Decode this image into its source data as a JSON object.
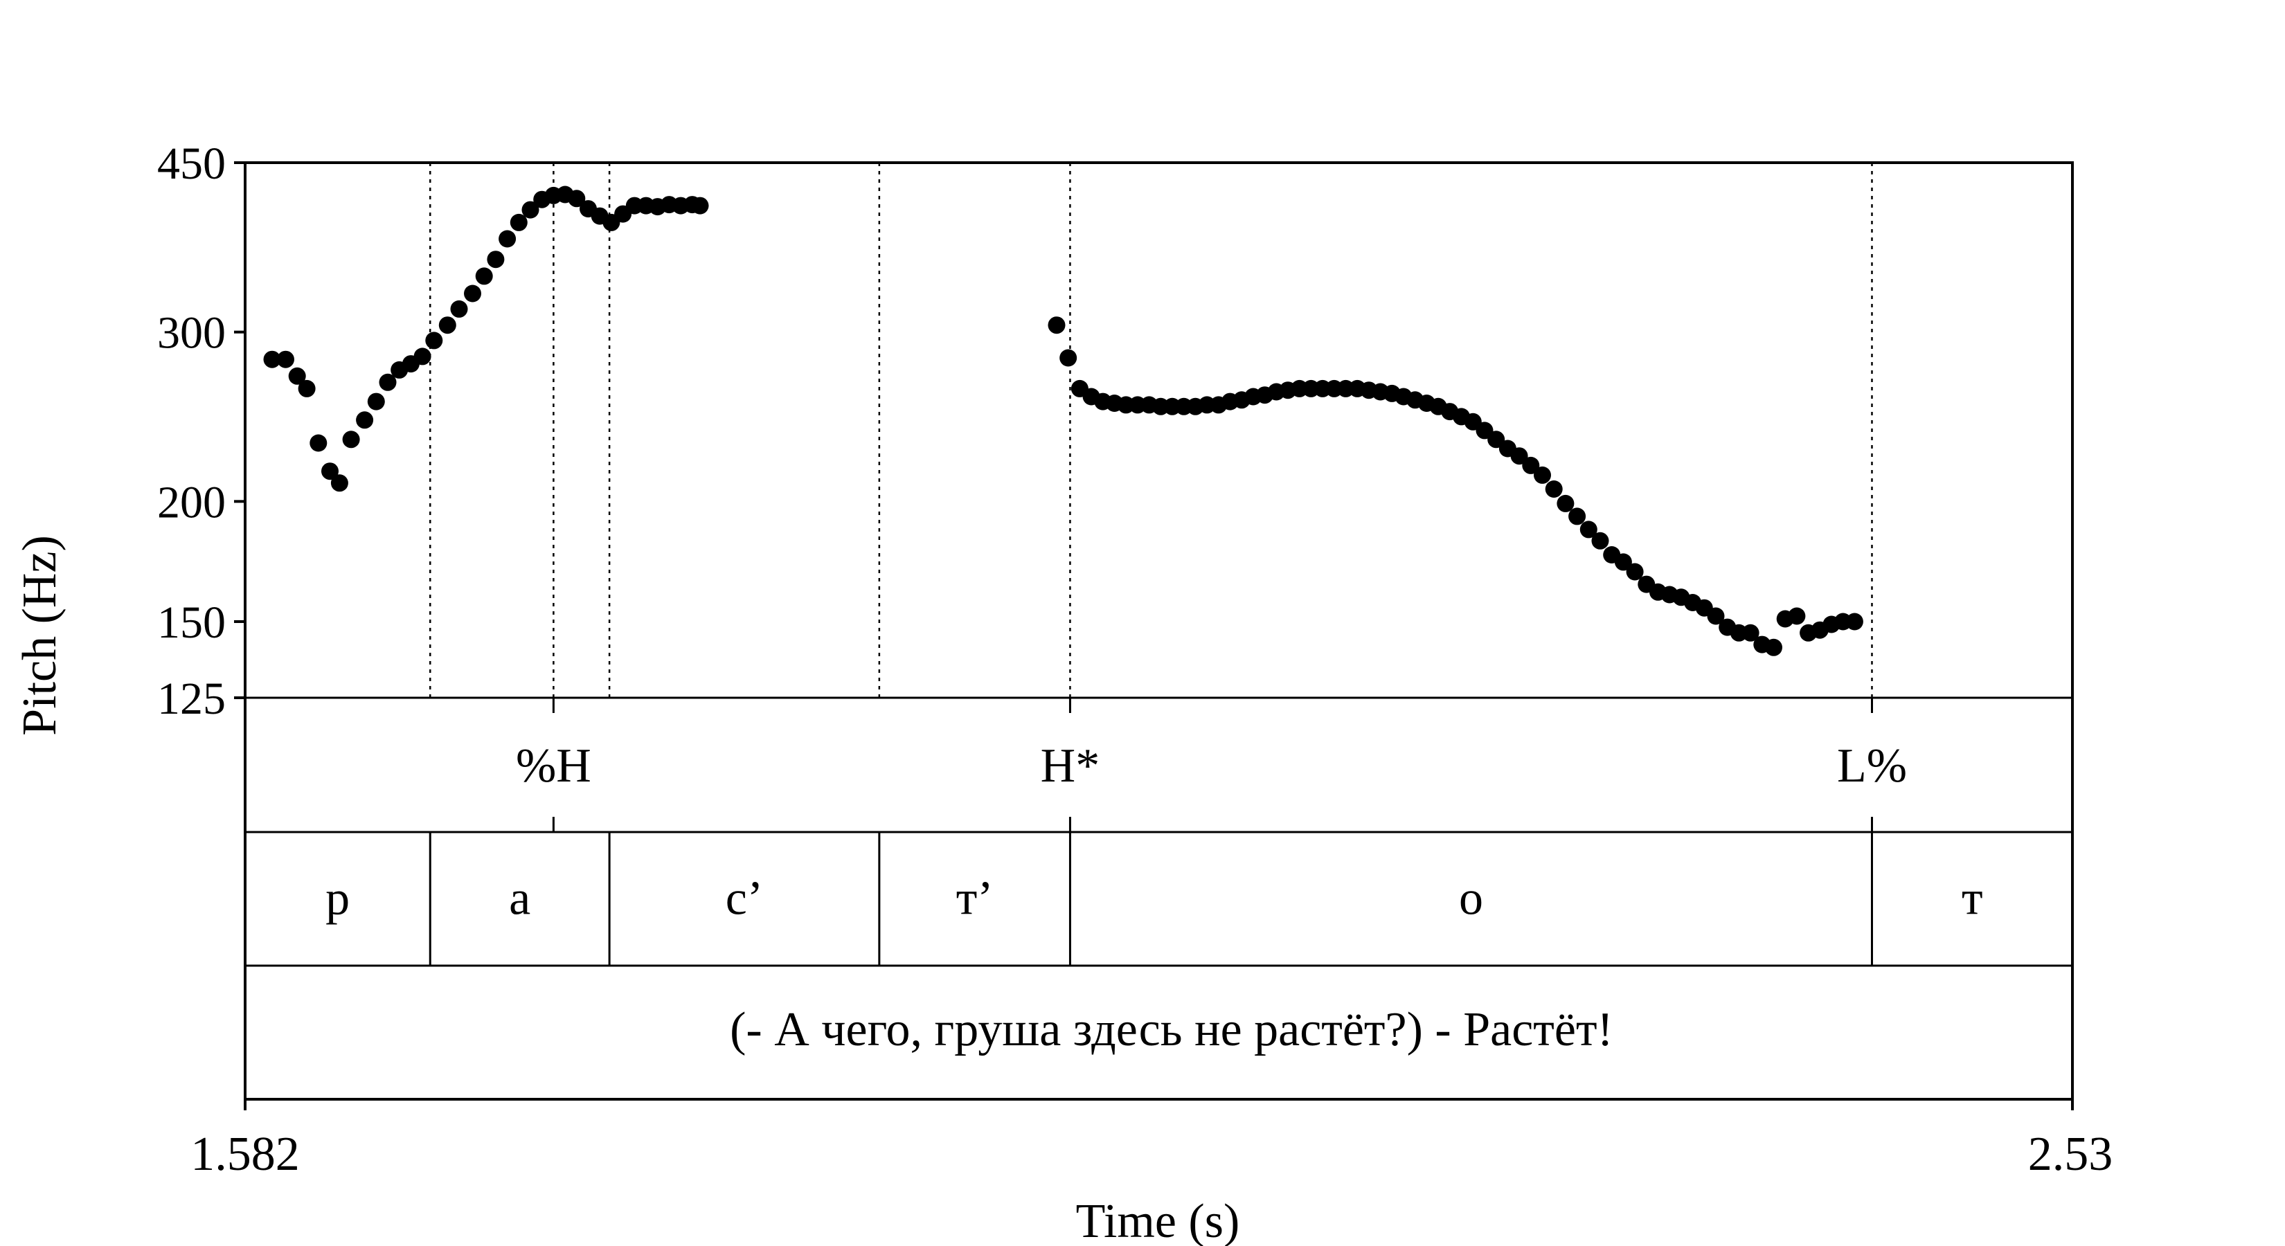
{
  "chart_data": {
    "type": "scatter",
    "title": "",
    "xlabel": "Time (s)",
    "ylabel": "Pitch (Hz)",
    "xlim": [
      1.582,
      2.53
    ],
    "ylim": [
      125,
      450
    ],
    "y_scale": "log",
    "yticks": [
      125,
      150,
      200,
      300,
      450
    ],
    "ytick_labels": [
      "125",
      "150",
      "200",
      "300",
      "450"
    ],
    "x_start_label": "1.582",
    "x_end_label": "2.53",
    "grid": false,
    "marker_color": "#000000",
    "points": [
      [
        1.596,
        281
      ],
      [
        1.603,
        281
      ],
      [
        1.609,
        270
      ],
      [
        1.614,
        262
      ],
      [
        1.62,
        230
      ],
      [
        1.626,
        215
      ],
      [
        1.631,
        209
      ],
      [
        1.637,
        232
      ],
      [
        1.644,
        243
      ],
      [
        1.65,
        254
      ],
      [
        1.656,
        266
      ],
      [
        1.662,
        274
      ],
      [
        1.668,
        278
      ],
      [
        1.674,
        283
      ],
      [
        1.68,
        294
      ],
      [
        1.687,
        305
      ],
      [
        1.693,
        317
      ],
      [
        1.7,
        329
      ],
      [
        1.706,
        343
      ],
      [
        1.712,
        357
      ],
      [
        1.718,
        375
      ],
      [
        1.724,
        390
      ],
      [
        1.73,
        402
      ],
      [
        1.736,
        412
      ],
      [
        1.742,
        416
      ],
      [
        1.748,
        417
      ],
      [
        1.754,
        413
      ],
      [
        1.76,
        403
      ],
      [
        1.766,
        396
      ],
      [
        1.772,
        390
      ],
      [
        1.778,
        398
      ],
      [
        1.784,
        406
      ],
      [
        1.79,
        406
      ],
      [
        1.796,
        405
      ],
      [
        1.802,
        407
      ],
      [
        1.808,
        406
      ],
      [
        1.814,
        407
      ],
      [
        1.818,
        406
      ],
      [
        2.003,
        305
      ],
      [
        2.009,
        282
      ],
      [
        2.015,
        262
      ],
      [
        2.021,
        257
      ],
      [
        2.027,
        254
      ],
      [
        2.033,
        253
      ],
      [
        2.039,
        252
      ],
      [
        2.045,
        252
      ],
      [
        2.051,
        252
      ],
      [
        2.057,
        251
      ],
      [
        2.063,
        251
      ],
      [
        2.069,
        251
      ],
      [
        2.075,
        251
      ],
      [
        2.081,
        252
      ],
      [
        2.087,
        252
      ],
      [
        2.093,
        254
      ],
      [
        2.099,
        255
      ],
      [
        2.105,
        257
      ],
      [
        2.111,
        258
      ],
      [
        2.117,
        260
      ],
      [
        2.123,
        261
      ],
      [
        2.129,
        262
      ],
      [
        2.135,
        262
      ],
      [
        2.141,
        262
      ],
      [
        2.147,
        262
      ],
      [
        2.153,
        262
      ],
      [
        2.159,
        262
      ],
      [
        2.165,
        261
      ],
      [
        2.171,
        260
      ],
      [
        2.177,
        259
      ],
      [
        2.183,
        257
      ],
      [
        2.189,
        255
      ],
      [
        2.195,
        253
      ],
      [
        2.201,
        251
      ],
      [
        2.207,
        248
      ],
      [
        2.213,
        245
      ],
      [
        2.219,
        242
      ],
      [
        2.225,
        237
      ],
      [
        2.231,
        232
      ],
      [
        2.237,
        227
      ],
      [
        2.243,
        223
      ],
      [
        2.249,
        218
      ],
      [
        2.255,
        213
      ],
      [
        2.261,
        206
      ],
      [
        2.267,
        199
      ],
      [
        2.273,
        193
      ],
      [
        2.279,
        187
      ],
      [
        2.285,
        182
      ],
      [
        2.291,
        176
      ],
      [
        2.297,
        173
      ],
      [
        2.303,
        169
      ],
      [
        2.309,
        164
      ],
      [
        2.315,
        161
      ],
      [
        2.321,
        160
      ],
      [
        2.327,
        159
      ],
      [
        2.333,
        157
      ],
      [
        2.339,
        155
      ],
      [
        2.345,
        152
      ],
      [
        2.351,
        148
      ],
      [
        2.357,
        146
      ],
      [
        2.363,
        146
      ],
      [
        2.369,
        142
      ],
      [
        2.375,
        141
      ],
      [
        2.381,
        151
      ],
      [
        2.387,
        152
      ],
      [
        2.393,
        146
      ],
      [
        2.399,
        147
      ],
      [
        2.405,
        149
      ],
      [
        2.411,
        150
      ],
      [
        2.417,
        150
      ]
    ],
    "boundaries": [
      1.678,
      1.742,
      1.771,
      1.911,
      2.01,
      2.426
    ]
  },
  "tiers": {
    "tones": {
      "points": [
        {
          "time": 1.742,
          "label": "%H"
        },
        {
          "time": 2.01,
          "label": "H*"
        },
        {
          "time": 2.426,
          "label": "L%"
        }
      ]
    },
    "segments": {
      "intervals": [
        {
          "start": 1.582,
          "end": 1.678,
          "label": "р"
        },
        {
          "start": 1.678,
          "end": 1.771,
          "label": "а"
        },
        {
          "start": 1.771,
          "end": 1.911,
          "label": "с’"
        },
        {
          "start": 1.911,
          "end": 2.01,
          "label": "т’"
        },
        {
          "start": 2.01,
          "end": 2.426,
          "label": "о"
        },
        {
          "start": 2.426,
          "end": 2.53,
          "label": "т"
        }
      ]
    },
    "sentence": {
      "text": "(- А чего, груша здесь не растёт?) - Растёт!"
    }
  }
}
